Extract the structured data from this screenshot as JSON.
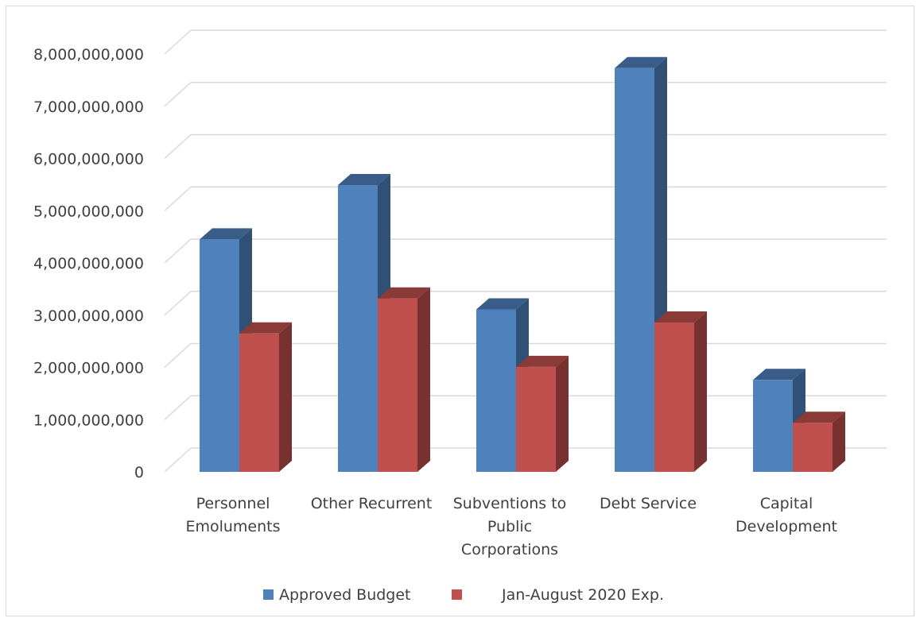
{
  "chart_data": {
    "type": "bar",
    "categories": [
      [
        "Personnel",
        "Emoluments"
      ],
      [
        "Other Recurrent"
      ],
      [
        "Subventions to",
        "Public",
        "Corporations"
      ],
      [
        "Debt Service"
      ],
      [
        "Capital",
        "Development"
      ]
    ],
    "series": [
      {
        "name": "Approved Budget",
        "color": "#4f81bd",
        "values": [
          4450000000,
          5490000000,
          3110000000,
          7730000000,
          1760000000
        ]
      },
      {
        "name": "Jan-August 2020 Exp.",
        "color": "#c0504d",
        "values": [
          2650000000,
          3320000000,
          2010000000,
          2860000000,
          940000000
        ]
      }
    ],
    "y_ticks": [
      "0",
      "1,000,000,000",
      "2,000,000,000",
      "3,000,000,000",
      "4,000,000,000",
      "5,000,000,000",
      "6,000,000,000",
      "7,000,000,000",
      "8,000,000,000"
    ],
    "ylim": [
      0,
      8000000000
    ],
    "grid": true,
    "legend": "bottom",
    "style": "3d-clustered-column"
  }
}
